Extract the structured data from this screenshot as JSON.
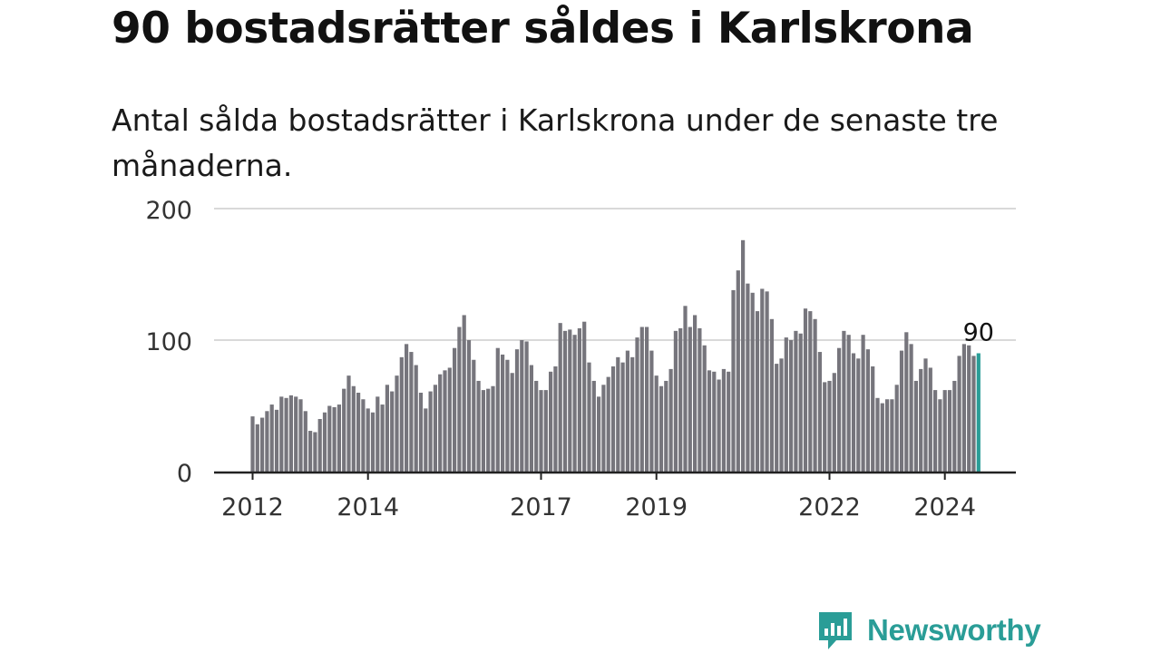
{
  "header": {
    "title": "90 bostadsrätter såldes i Karlskrona",
    "subtitle": "Antal sålda bostadsrätter i Karlskrona under de senaste tre månaderna."
  },
  "brand": {
    "name": "Newsworthy",
    "color": "#2a9d97"
  },
  "chart_data": {
    "type": "bar",
    "title": "",
    "xlabel": "",
    "ylabel": "",
    "ylim": [
      0,
      200
    ],
    "yticks": [
      0,
      100,
      200
    ],
    "xticks": [
      {
        "label": "2012",
        "index": 0
      },
      {
        "label": "2014",
        "index": 24
      },
      {
        "label": "2017",
        "index": 60
      },
      {
        "label": "2019",
        "index": 84
      },
      {
        "label": "2022",
        "index": 120
      },
      {
        "label": "2024",
        "index": 144
      }
    ],
    "grid": true,
    "bar_color": "#76757c",
    "highlight_color": "#2a9d97",
    "highlight_label": "90",
    "series": [
      {
        "values": [
          42,
          36,
          41,
          46,
          51,
          47,
          57,
          56,
          58,
          57,
          55,
          46,
          31,
          30,
          40,
          45,
          50,
          49,
          51,
          63,
          73,
          65,
          60,
          55,
          48,
          45,
          57,
          51,
          66,
          61,
          73,
          87,
          97,
          91,
          81,
          60,
          48,
          61,
          66,
          74,
          77,
          79,
          94,
          110,
          119,
          100,
          85,
          69,
          62,
          63,
          65,
          94,
          89,
          85,
          75,
          93,
          100,
          99,
          81,
          69,
          62,
          62,
          76,
          80,
          113,
          107,
          108,
          104,
          109,
          114,
          83,
          69,
          57,
          66,
          72,
          80,
          87,
          83,
          92,
          87,
          102,
          110,
          110,
          92,
          73,
          65,
          69,
          78,
          107,
          109,
          126,
          110,
          119,
          109,
          96,
          77,
          76,
          70,
          78,
          76,
          138,
          153,
          176,
          143,
          136,
          122,
          139,
          137,
          116,
          82,
          86,
          102,
          100,
          107,
          105,
          124,
          122,
          116,
          91,
          68,
          69,
          75,
          94,
          107,
          104,
          90,
          86,
          104,
          93,
          80,
          56,
          52,
          55,
          55,
          66,
          92,
          106,
          97,
          69,
          78,
          86,
          79,
          62,
          55,
          62,
          62,
          69,
          88,
          97,
          96,
          88,
          90
        ]
      }
    ]
  }
}
